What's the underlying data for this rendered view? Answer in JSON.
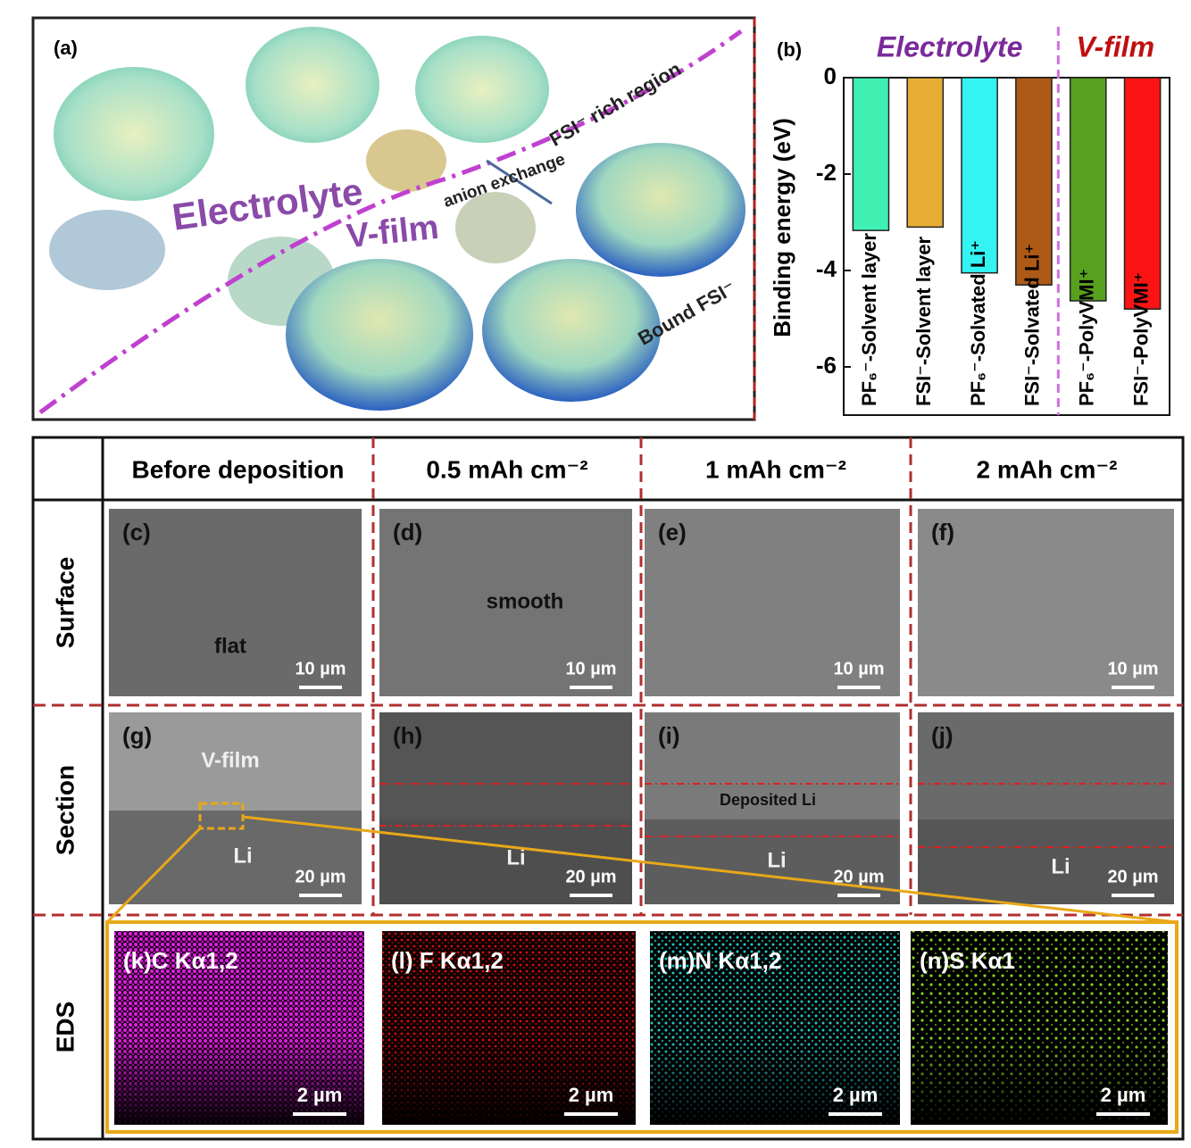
{
  "panel_a": {
    "label": "(a)",
    "region_texts": [
      "Electrolyte",
      "V-film",
      "anion exchange",
      "FSI⁻ rich region",
      "Bound FSI⁻"
    ]
  },
  "chart_data": {
    "type": "bar",
    "label": "(b)",
    "y_label": "Binding energy (eV)",
    "group_labels": [
      "Electrolyte",
      "V-film"
    ],
    "categories": [
      "PF₆⁻-Solvent layer",
      "FSI⁻-Solvent layer",
      "PF₆⁻-Solvated Li⁺",
      "FSI⁻-Solvated Li⁺",
      "PF₆⁻-PolyVMI⁺",
      "FSI⁻-PolyVMI⁺"
    ],
    "values": [
      -3.17,
      -3.1,
      -4.05,
      -4.3,
      -4.63,
      -4.8
    ],
    "colors": [
      "#3ff0b2",
      "#e6ae35",
      "#33f3f3",
      "#ae5a17",
      "#58a11f",
      "#fa1414"
    ],
    "ylim": [
      -7,
      0
    ],
    "yticks": [
      0,
      -2,
      -4,
      -6
    ]
  },
  "grid": {
    "columns": [
      "Before deposition",
      "0.5 mAh cm⁻²",
      "1 mAh cm⁻²",
      "2 mAh cm⁻²"
    ],
    "rows": [
      "Surface",
      "Section",
      "EDS"
    ],
    "surface": [
      {
        "label": "(c)",
        "scale": "10 µm",
        "notes": [
          "flat"
        ]
      },
      {
        "label": "(d)",
        "scale": "10 µm",
        "notes": [
          "smooth"
        ]
      },
      {
        "label": "(e)",
        "scale": "10 µm",
        "notes": []
      },
      {
        "label": "(f)",
        "scale": "10 µm",
        "notes": []
      }
    ],
    "section": [
      {
        "label": "(g)",
        "scale": "20 µm",
        "notes": [
          "V-film",
          "Li"
        ]
      },
      {
        "label": "(h)",
        "scale": "20 µm",
        "notes": [
          "Li"
        ]
      },
      {
        "label": "(i)",
        "scale": "20 µm",
        "notes": [
          "Deposited Li",
          "Li"
        ]
      },
      {
        "label": "(j)",
        "scale": "20 µm",
        "notes": [
          "Li"
        ]
      }
    ],
    "eds": [
      {
        "label": "(k)C Kα1,2",
        "scale": "2 µm"
      },
      {
        "label": "(l) F Kα1,2",
        "scale": "2 µm"
      },
      {
        "label": "(m)N Kα1,2",
        "scale": "2 µm"
      },
      {
        "label": "(n)S Kα1",
        "scale": "2 µm"
      }
    ]
  }
}
